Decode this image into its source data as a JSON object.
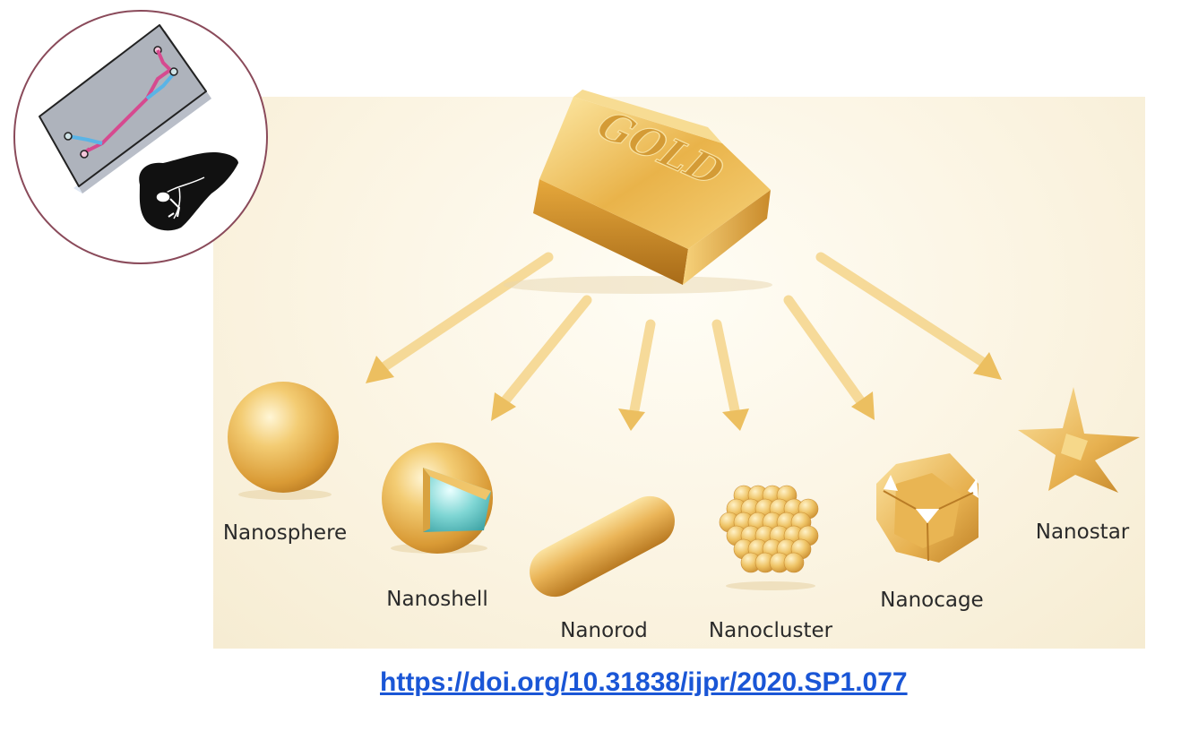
{
  "diagram": {
    "source_label": "GOLD",
    "items": [
      {
        "name": "Nanosphere"
      },
      {
        "name": "Nanoshell"
      },
      {
        "name": "Nanorod"
      },
      {
        "name": "Nanocluster"
      },
      {
        "name": "Nanocage"
      },
      {
        "name": "Nanostar"
      }
    ]
  },
  "citation": {
    "link_text": "https://doi.org/10.31838/ijpr/2020.SP1.077"
  },
  "colors": {
    "gold": "#e8b04a",
    "arrow": "#f0c86a",
    "link": "#1a56d6",
    "inset_border": "#8a4a5a",
    "channel_pink": "#d64a8f",
    "channel_blue": "#5ab4e6"
  },
  "icons": [
    "organ-on-chip-icon",
    "liver-icon"
  ]
}
